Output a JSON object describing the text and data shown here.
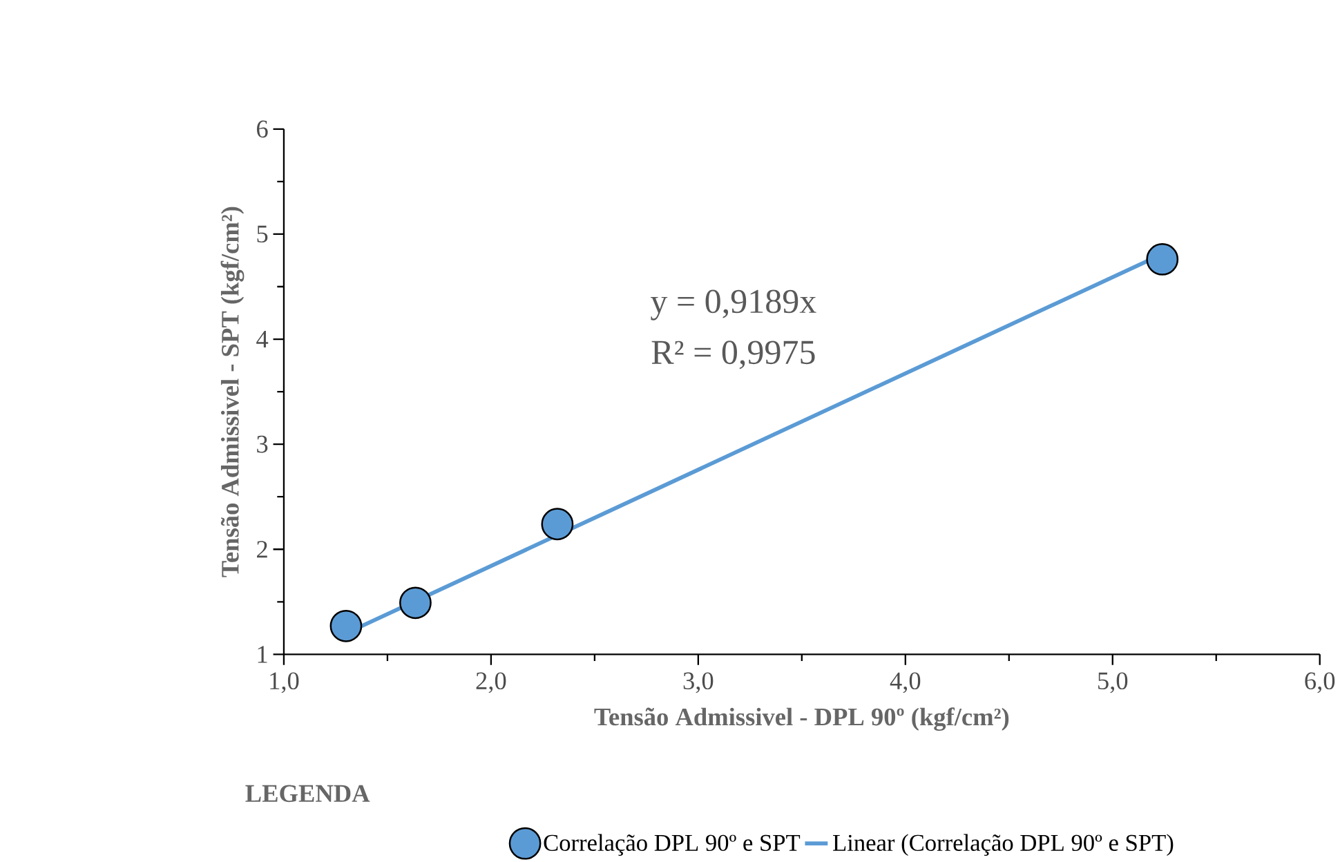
{
  "chart_data": {
    "type": "scatter",
    "xlabel": "Tensão Admissivel - DPL 90º  (kgf/cm²)",
    "ylabel": "Tensão Admissivel - SPT (kgf/cm²)",
    "legend_title": "LEGENDA",
    "legend": "bottom",
    "marker": "circle",
    "xlim": [
      1,
      6
    ],
    "ylim": [
      1,
      6
    ],
    "xticks": [
      {
        "value": 1,
        "label": "1,0"
      },
      {
        "value": 2,
        "label": "2,0"
      },
      {
        "value": 3,
        "label": "3,0"
      },
      {
        "value": 4,
        "label": "4,0"
      },
      {
        "value": 5,
        "label": "5,0"
      },
      {
        "value": 6,
        "label": "6,0"
      }
    ],
    "yticks": [
      1,
      2,
      3,
      4,
      5,
      6
    ],
    "series": [
      {
        "name": "Correlação DPL 90º e SPT",
        "color": "#5b9bd5",
        "x": [
          1.3,
          1.635,
          2.32,
          5.24
        ],
        "values": [
          1.27,
          1.49,
          2.24,
          4.76
        ]
      },
      {
        "name": "Linear (Correlação DPL 90º e SPT)",
        "type": "line",
        "marker": "none",
        "color": "#5b9bd5",
        "x": [
          1.3,
          5.24
        ],
        "values": [
          1.2,
          4.81
        ]
      }
    ],
    "annotations": [
      "y = 0,9189x",
      "R² = 0,9975"
    ]
  }
}
